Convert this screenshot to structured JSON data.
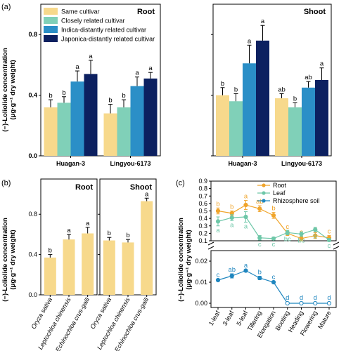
{
  "panels": {
    "a": "(a)",
    "b": "(b)",
    "c": "(c)"
  },
  "y_axis_label": {
    "line1": "(−)-Loliolide concentration",
    "line2": "(μg·g⁻¹ dry weight)"
  },
  "chart_data": [
    {
      "id": "a-root",
      "type": "bar",
      "subtitle": "Root",
      "categories": [
        "Huagan-3",
        "Lingyou-6173"
      ],
      "ylim": [
        0,
        1.0
      ],
      "yticks": [
        "0.0",
        "0.4",
        "0.8"
      ],
      "legend": [
        "Same cultivar",
        "Closely related cultivar",
        "Indica-distantly related cultivar",
        "Japonica-distantly related cultivar"
      ],
      "colors": [
        "#f7d98c",
        "#80d0b8",
        "#2b8fc7",
        "#0c2060"
      ],
      "series": [
        {
          "values": [
            0.32,
            0.28
          ],
          "errors": [
            0.05,
            0.06
          ],
          "letters": [
            "b",
            "b"
          ]
        },
        {
          "values": [
            0.35,
            0.32
          ],
          "errors": [
            0.04,
            0.05
          ],
          "letters": [
            "b",
            "b"
          ]
        },
        {
          "values": [
            0.49,
            0.46
          ],
          "errors": [
            0.07,
            0.06
          ],
          "letters": [
            "a",
            "a"
          ]
        },
        {
          "values": [
            0.54,
            0.51
          ],
          "errors": [
            0.09,
            0.04
          ],
          "letters": [
            "a",
            "a"
          ]
        }
      ]
    },
    {
      "id": "a-shoot",
      "type": "bar",
      "subtitle": "Shoot",
      "categories": [
        "Huagan-3",
        "Lingyou-6173"
      ],
      "ylim": [
        0,
        1.0
      ],
      "yticks": [
        "0.0",
        "0.4",
        "0.8"
      ],
      "colors": [
        "#f7d98c",
        "#80d0b8",
        "#2b8fc7",
        "#0c2060"
      ],
      "series": [
        {
          "values": [
            0.4,
            0.38
          ],
          "errors": [
            0.05,
            0.03
          ],
          "letters": [
            "b",
            "ab"
          ]
        },
        {
          "values": [
            0.36,
            0.32
          ],
          "errors": [
            0.05,
            0.03
          ],
          "letters": [
            "b",
            "b"
          ]
        },
        {
          "values": [
            0.61,
            0.45
          ],
          "errors": [
            0.12,
            0.04
          ],
          "letters": [
            "a",
            "ab"
          ]
        },
        {
          "values": [
            0.76,
            0.5
          ],
          "errors": [
            0.1,
            0.08
          ],
          "letters": [
            "a",
            "a"
          ]
        }
      ]
    },
    {
      "id": "b-root",
      "type": "bar",
      "subtitle": "Root",
      "categories": [
        "Oryza sativa",
        "Leptochloa chinensis",
        "Echinochloa crus-galli"
      ],
      "ylim": [
        0,
        1.15
      ],
      "yticks": [
        "0.0",
        "0.4",
        "0.8"
      ],
      "color": "#f7d98c",
      "values": [
        0.37,
        0.55,
        0.61
      ],
      "errors": [
        0.03,
        0.05,
        0.06
      ],
      "letters": [
        "b",
        "a",
        "a"
      ]
    },
    {
      "id": "b-shoot",
      "type": "bar",
      "subtitle": "Shoot",
      "categories": [
        "Oryza sativa",
        "Leptochloa chinensis",
        "Echinochloa crus-galli"
      ],
      "ylim": [
        0,
        1.15
      ],
      "color": "#f7d98c",
      "values": [
        0.54,
        0.52,
        0.93
      ],
      "errors": [
        0.03,
        0.03,
        0.03
      ],
      "letters": [
        "b",
        "b",
        "a"
      ]
    },
    {
      "id": "c",
      "type": "line",
      "categories": [
        "1-leaf",
        "3-leaf",
        "5-leaf",
        "Tillering",
        "Elongation",
        "Booting",
        "Heading",
        "Flowering",
        "Mature"
      ],
      "upper_yticks": [
        "0.1",
        "0.2",
        "0.3",
        "0.4",
        "0.5",
        "0.6",
        "0.7",
        "0.8",
        "0.9"
      ],
      "lower_yticks": [
        "0.00",
        "0.01",
        "0.02"
      ],
      "series": [
        {
          "name": "Root",
          "color": "#f0a42a",
          "axis": "upper",
          "values": [
            0.5,
            0.47,
            0.58,
            0.53,
            0.44,
            0.2,
            0.13,
            0.17,
            0.14
          ],
          "errors": [
            0.04,
            0.03,
            0.06,
            0.04,
            0.04,
            0.03,
            0.03,
            0.04,
            0.03
          ],
          "letters": [
            "b",
            "b",
            "a",
            "ab",
            "b",
            "c",
            "c",
            "c",
            "c"
          ]
        },
        {
          "name": "Leaf",
          "color": "#6ec7a8",
          "axis": "upper",
          "values": [
            0.36,
            0.41,
            0.42,
            0.14,
            0.13,
            0.21,
            0.19,
            0.25,
            0.11
          ],
          "errors": [
            0.06,
            0.04,
            0.07,
            0.03,
            0.02,
            0.03,
            0.03,
            0.03,
            0.02
          ],
          "letters": [
            "a",
            "a",
            "a",
            "c",
            "c",
            "bc",
            "bc",
            "b",
            "c"
          ]
        },
        {
          "name": "Rhizosphere soil",
          "color": "#1f86bf",
          "axis": "lower",
          "values": [
            0.011,
            0.013,
            0.0155,
            0.012,
            0.01,
            0.0,
            0.0,
            0.0,
            0.0
          ],
          "errors": [
            0.0005,
            0.001,
            0.0005,
            0.0008,
            0.0005,
            0,
            0,
            0,
            0
          ],
          "letters": [
            "c",
            "ab",
            "a",
            "b",
            "c",
            "d",
            "d",
            "d",
            "d"
          ]
        }
      ]
    }
  ]
}
